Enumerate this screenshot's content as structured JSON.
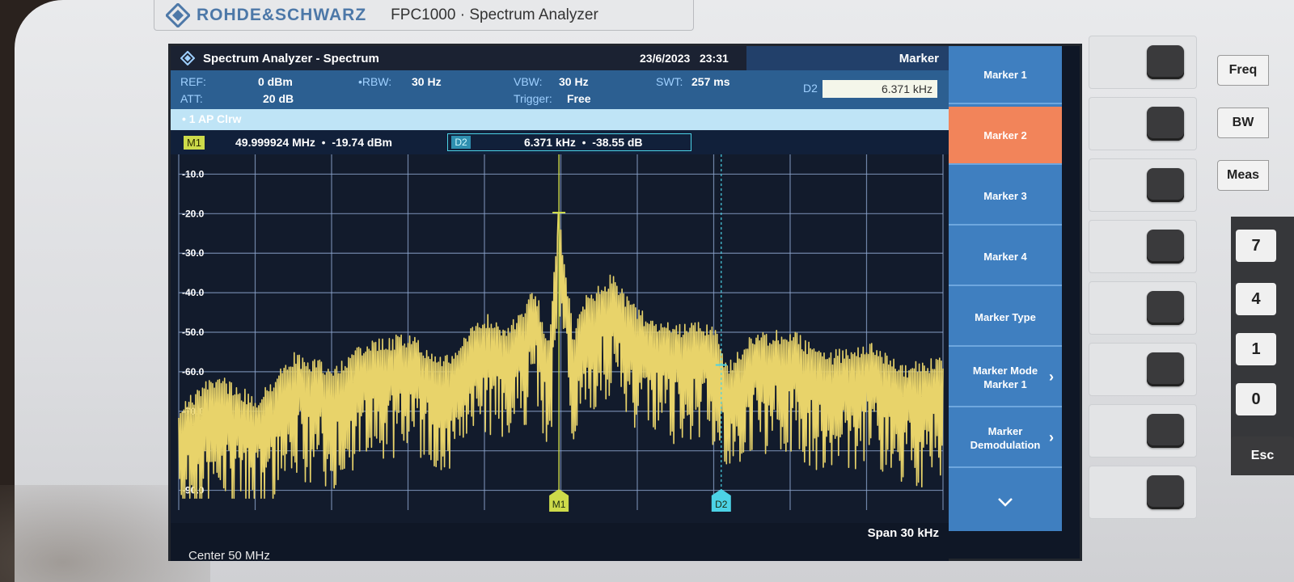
{
  "brand": {
    "name": "ROHDE&SCHWARZ",
    "model": "FPC1000 · Spectrum Analyzer"
  },
  "header": {
    "title": "Spectrum Analyzer - Spectrum",
    "date": "23/6/2023",
    "time": "23:31",
    "panel_title": "Marker"
  },
  "params": {
    "ref_label": "REF:",
    "ref_value": "0 dBm",
    "att_label": "ATT:",
    "att_value": "20 dB",
    "rbw_label": "•RBW:",
    "rbw_value": "30 Hz",
    "vbw_label": "VBW:",
    "vbw_value": "30 Hz",
    "trigger_label": "Trigger:",
    "trigger_value": "Free",
    "swt_label": "SWT:",
    "swt_value": "257 ms"
  },
  "delta_entry": {
    "label": "D2",
    "value": "6.371 kHz"
  },
  "trace": {
    "label": "• 1 AP Clrw"
  },
  "marker_readout": {
    "m1_badge": "M1",
    "m1_freq": "49.999924 MHz",
    "m1_level": "-19.74 dBm",
    "d2_badge": "D2",
    "d2_freq": "6.371 kHz",
    "d2_level": "-38.55 dB"
  },
  "footer": {
    "span": "Span 30 kHz",
    "center": "Center 50 MHz"
  },
  "softkeys": [
    {
      "label": "Marker 1",
      "active": false,
      "chevron": false
    },
    {
      "label": "Marker 2",
      "active": true,
      "chevron": false
    },
    {
      "label": "Marker 3",
      "active": false,
      "chevron": false
    },
    {
      "label": "Marker 4",
      "active": false,
      "chevron": false
    },
    {
      "label": "Marker Type",
      "active": false,
      "chevron": false
    },
    {
      "label": "Marker Mode Marker 1",
      "active": false,
      "chevron": true
    },
    {
      "label": "Marker Demodulation",
      "active": false,
      "chevron": true
    }
  ],
  "more_icon": "chevron-down-icon",
  "hardware_keys": {
    "freq": "Freq",
    "bw": "BW",
    "meas": "Meas",
    "n7": "7",
    "n4": "4",
    "n1": "1",
    "n0": "0",
    "esc": "Esc"
  },
  "colors": {
    "trace": "#e8d36a",
    "grid": "#8fa8d0",
    "m1": "#cddb4a",
    "d2": "#4cd2e6",
    "active_key": "#f2845a"
  },
  "chart_data": {
    "type": "line",
    "title": "",
    "xlabel": "",
    "ylabel": "",
    "x_range": [
      49.985,
      50.015
    ],
    "x_unit": "MHz",
    "ylim": [
      -95,
      -5
    ],
    "y_ticks": [
      "-10.0",
      "-20.0",
      "-30.0",
      "-40.0",
      "-50.0",
      "-60.0",
      "-70.0",
      "-80.0",
      "-90.0"
    ],
    "y_tick_values": [
      -10,
      -20,
      -30,
      -40,
      -50,
      -60,
      -70,
      -80,
      -90
    ],
    "grid": true,
    "series": [
      {
        "x": [
          49.985,
          49.9865,
          49.988,
          49.9895,
          49.991,
          49.9925,
          49.994,
          49.9955,
          49.997,
          49.998,
          49.999,
          49.9995,
          49.999924,
          50.0005,
          50.001,
          50.002,
          50.003,
          50.0045,
          50.006,
          50.0065,
          50.0075,
          50.009,
          50.0105,
          50.012,
          50.0135,
          50.015
        ],
        "y": [
          -68,
          -60,
          -66,
          -55,
          -58,
          -52,
          -50,
          -56,
          -45,
          -48,
          -38,
          -52,
          -19.74,
          -50,
          -40,
          -35,
          -44,
          -48,
          -47,
          -58.3,
          -50,
          -49,
          -55,
          -52,
          -58,
          -56
        ]
      }
    ],
    "markers": [
      {
        "name": "M1",
        "x": 49.999924,
        "y": -19.74
      },
      {
        "name": "D2",
        "x": 50.006295,
        "y": -58.29
      }
    ]
  }
}
